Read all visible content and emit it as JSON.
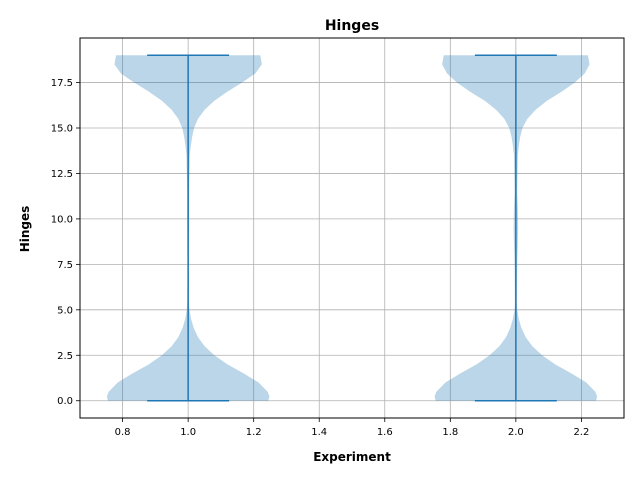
{
  "chart_data": {
    "type": "violin",
    "title": "Hinges",
    "xlabel": "Experiment",
    "ylabel": "Hinges",
    "xlim": [
      0.67,
      2.33
    ],
    "ylim": [
      -0.95,
      19.95
    ],
    "x_ticks": [
      "0.8",
      "1.0",
      "1.2",
      "1.4",
      "1.6",
      "1.8",
      "2.0",
      "2.2"
    ],
    "y_ticks": [
      "0.0",
      "2.5",
      "5.0",
      "7.5",
      "10.0",
      "12.5",
      "15.0",
      "17.5"
    ],
    "grid": true,
    "violins": [
      {
        "position": 1.0,
        "min": 0,
        "max": 19,
        "cap_half_width": 0.125,
        "profile": [
          [
            0,
            0.245
          ],
          [
            0.25,
            0.248
          ],
          [
            0.5,
            0.242
          ],
          [
            1.0,
            0.215
          ],
          [
            1.5,
            0.17
          ],
          [
            2.0,
            0.12
          ],
          [
            2.5,
            0.08
          ],
          [
            3.0,
            0.05
          ],
          [
            3.5,
            0.03
          ],
          [
            4.0,
            0.017
          ],
          [
            4.5,
            0.009
          ],
          [
            5.0,
            0.004
          ],
          [
            5.5,
            0.0025
          ],
          [
            7.5,
            0.002
          ],
          [
            9.5,
            0.003
          ],
          [
            11.5,
            0.003
          ],
          [
            13.5,
            0.005
          ],
          [
            14.0,
            0.008
          ],
          [
            14.5,
            0.012
          ],
          [
            15.0,
            0.018
          ],
          [
            15.5,
            0.03
          ],
          [
            16.0,
            0.05
          ],
          [
            16.5,
            0.08
          ],
          [
            17.0,
            0.12
          ],
          [
            17.5,
            0.165
          ],
          [
            18.0,
            0.205
          ],
          [
            18.5,
            0.225
          ],
          [
            19.0,
            0.22
          ]
        ]
      },
      {
        "position": 2.0,
        "min": 0,
        "max": 19,
        "cap_half_width": 0.125,
        "profile": [
          [
            0,
            0.245
          ],
          [
            0.25,
            0.248
          ],
          [
            0.5,
            0.242
          ],
          [
            1.0,
            0.215
          ],
          [
            1.5,
            0.17
          ],
          [
            2.0,
            0.12
          ],
          [
            2.5,
            0.08
          ],
          [
            3.0,
            0.05
          ],
          [
            3.5,
            0.03
          ],
          [
            4.0,
            0.017
          ],
          [
            4.5,
            0.009
          ],
          [
            5.0,
            0.004
          ],
          [
            5.5,
            0.003
          ],
          [
            7.5,
            0.004
          ],
          [
            9.5,
            0.007
          ],
          [
            10.5,
            0.006
          ],
          [
            11.5,
            0.004
          ],
          [
            13.5,
            0.006
          ],
          [
            14.0,
            0.009
          ],
          [
            14.5,
            0.013
          ],
          [
            15.0,
            0.02
          ],
          [
            15.5,
            0.035
          ],
          [
            16.0,
            0.06
          ],
          [
            16.5,
            0.095
          ],
          [
            17.0,
            0.14
          ],
          [
            17.5,
            0.18
          ],
          [
            18.0,
            0.21
          ],
          [
            18.5,
            0.225
          ],
          [
            19.0,
            0.22
          ]
        ]
      }
    ],
    "colors": {
      "body_fill": "#1f77b4",
      "body_opacity": 0.3,
      "line": "#1f77b4",
      "grid": "#b0b0b0"
    }
  }
}
